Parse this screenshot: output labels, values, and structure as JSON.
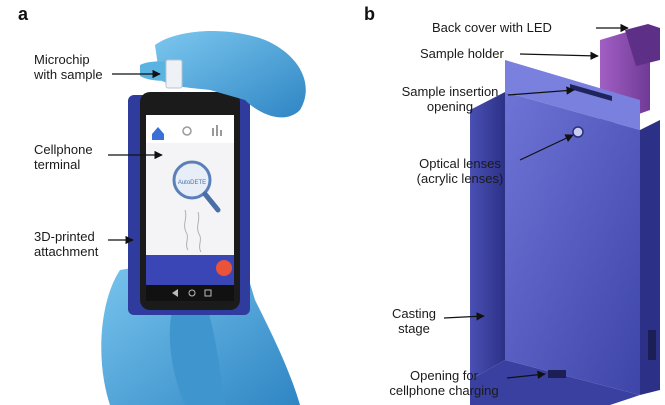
{
  "panel_a": {
    "letter": "a",
    "labels": {
      "microchip": [
        "Microchip",
        "with sample"
      ],
      "cellphone": [
        "Cellphone",
        "terminal"
      ],
      "attachment": [
        "3D-printed",
        "attachment"
      ]
    },
    "screen_logo": "AutoDETE"
  },
  "panel_b": {
    "letter": "b",
    "labels": {
      "back_cover": [
        "Back cover with LED"
      ],
      "sample_holder": [
        "Sample holder"
      ],
      "insertion": [
        "Sample insertion",
        "opening"
      ],
      "lenses": [
        "Optical lenses",
        "(acrylic lenses)"
      ],
      "casting": [
        "Casting",
        "stage"
      ],
      "charging": [
        "Opening for",
        "cellphone charging"
      ]
    }
  },
  "colors": {
    "glove": "#4aa8d8",
    "phone_case": "#2f3c9e",
    "phone_body": "#1b1b1b",
    "screen": "#f4f4f6",
    "attachment_body": "#5a63c9",
    "sample_holder": "#8b4fb0"
  }
}
